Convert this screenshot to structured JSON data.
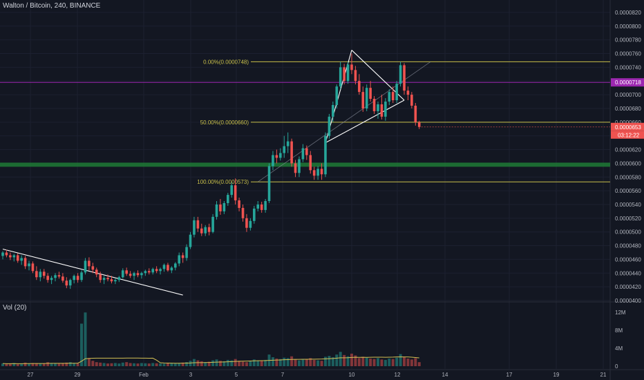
{
  "header": {
    "title": "Walton / Bitcoin, 240, BINANCE"
  },
  "volume_panel": {
    "label": "Vol (20)"
  },
  "colors": {
    "background": "#131722",
    "up": "#26a69a",
    "down": "#ef5350",
    "fib": "#c9c04a",
    "purple": "#9c27b0",
    "green_zone": "#1e7a35",
    "axis_text": "#b2b5be",
    "trendline": "#ffffff",
    "volume_ma": "#d4c154"
  },
  "chart_data": {
    "type": "candlestick",
    "title": "Walton / Bitcoin, 240, BINANCE",
    "price_axis": {
      "range": [
        4e-05,
        8.3e-05
      ],
      "ticks": [
        "0.0000820",
        "0.0000800",
        "0.0000780",
        "0.0000760",
        "0.0000740",
        "0.0000720",
        "0.0000700",
        "0.0000680",
        "0.0000660",
        "0.0000640",
        "0.0000620",
        "0.0000600",
        "0.0000580",
        "0.0000560",
        "0.0000540",
        "0.0000520",
        "0.0000500",
        "0.0000480",
        "0.0000460",
        "0.0000440",
        "0.0000420",
        "0.0000400"
      ]
    },
    "time_axis": {
      "ticks": [
        "27",
        "29",
        "Feb",
        "3",
        "5",
        "7",
        "10",
        "12",
        "14",
        "17",
        "19",
        "21"
      ]
    },
    "price_labels": [
      {
        "value": 7.18e-05,
        "text": "0.0000718",
        "color": "#9c27b0"
      },
      {
        "value": 6.53e-05,
        "text": "0.0000653",
        "color": "#ef5350",
        "countdown": "03:12:22"
      }
    ],
    "fibonacci": [
      {
        "level": "0.00%",
        "value": 7.48e-05,
        "label": "0.00%(0.0000748)"
      },
      {
        "level": "50.00%",
        "value": 6.6e-05,
        "label": "50.00%(0.0000660)"
      },
      {
        "level": "100.00%",
        "value": 5.73e-05,
        "label": "100.00%(0.0000573)"
      }
    ],
    "support_zone": [
      5.95e-05,
      6.01e-05
    ],
    "volume_axis": {
      "ticks": [
        "12M",
        "8M",
        "4M",
        "0"
      ],
      "range": [
        0,
        12500000
      ]
    },
    "candles": [
      [
        4.65e-05,
        4.72e-05,
        4.6e-05,
        4.7e-05
      ],
      [
        4.7e-05,
        4.74e-05,
        4.63e-05,
        4.66e-05
      ],
      [
        4.66e-05,
        4.7e-05,
        4.59e-05,
        4.63e-05
      ],
      [
        4.63e-05,
        4.68e-05,
        4.57e-05,
        4.66e-05
      ],
      [
        4.66e-05,
        4.69e-05,
        4.55e-05,
        4.58e-05
      ],
      [
        4.58e-05,
        4.66e-05,
        4.52e-05,
        4.62e-05
      ],
      [
        4.62e-05,
        4.65e-05,
        4.46e-05,
        4.5e-05
      ],
      [
        4.5e-05,
        4.58e-05,
        4.44e-05,
        4.54e-05
      ],
      [
        4.54e-05,
        4.57e-05,
        4.4e-05,
        4.43e-05
      ],
      [
        4.43e-05,
        4.5e-05,
        4.3e-05,
        4.34e-05
      ],
      [
        4.34e-05,
        4.46e-05,
        4.28e-05,
        4.42e-05
      ],
      [
        4.42e-05,
        4.46e-05,
        4.32e-05,
        4.36e-05
      ],
      [
        4.36e-05,
        4.4e-05,
        4.26e-05,
        4.3e-05
      ],
      [
        4.3e-05,
        4.36e-05,
        4.24e-05,
        4.33e-05
      ],
      [
        4.33e-05,
        4.4e-05,
        4.28e-05,
        4.37e-05
      ],
      [
        4.37e-05,
        4.42e-05,
        4.32e-05,
        4.35e-05
      ],
      [
        4.35e-05,
        4.4e-05,
        4.26e-05,
        4.29e-05
      ],
      [
        4.29e-05,
        4.34e-05,
        4.18e-05,
        4.22e-05
      ],
      [
        4.22e-05,
        4.32e-05,
        4.17e-05,
        4.3e-05
      ],
      [
        4.3e-05,
        4.38e-05,
        4.25e-05,
        4.36e-05
      ],
      [
        4.36e-05,
        4.4e-05,
        4.26e-05,
        4.3e-05
      ],
      [
        4.3e-05,
        4.44e-05,
        4.27e-05,
        4.41e-05
      ],
      [
        4.41e-05,
        4.62e-05,
        4.38e-05,
        4.58e-05
      ],
      [
        4.58e-05,
        4.63e-05,
        4.44e-05,
        4.5e-05
      ],
      [
        4.5e-05,
        4.55e-05,
        4.4e-05,
        4.45e-05
      ],
      [
        4.45e-05,
        4.48e-05,
        4.34e-05,
        4.38e-05
      ],
      [
        4.38e-05,
        4.42e-05,
        4.26e-05,
        4.3e-05
      ],
      [
        4.3e-05,
        4.36e-05,
        4.24e-05,
        4.33e-05
      ],
      [
        4.33e-05,
        4.38e-05,
        4.28e-05,
        4.31e-05
      ],
      [
        4.31e-05,
        4.36e-05,
        4.25e-05,
        4.28e-05
      ],
      [
        4.28e-05,
        4.32e-05,
        4.24e-05,
        4.3e-05
      ],
      [
        4.3e-05,
        4.36e-05,
        4.27e-05,
        4.34e-05
      ],
      [
        4.34e-05,
        4.47e-05,
        4.32e-05,
        4.44e-05
      ],
      [
        4.44e-05,
        4.48e-05,
        4.36e-05,
        4.39e-05
      ],
      [
        4.39e-05,
        4.43e-05,
        4.33e-05,
        4.36e-05
      ],
      [
        4.36e-05,
        4.42e-05,
        4.3e-05,
        4.4e-05
      ],
      [
        4.4e-05,
        4.44e-05,
        4.34e-05,
        4.37e-05
      ],
      [
        4.37e-05,
        4.42e-05,
        4.32e-05,
        4.4e-05
      ],
      [
        4.4e-05,
        4.45e-05,
        4.36e-05,
        4.43e-05
      ],
      [
        4.43e-05,
        4.47e-05,
        4.38e-05,
        4.41e-05
      ],
      [
        4.41e-05,
        4.48e-05,
        4.38e-05,
        4.46e-05
      ],
      [
        4.46e-05,
        4.5e-05,
        4.4e-05,
        4.43e-05
      ],
      [
        4.43e-05,
        4.48e-05,
        4.38e-05,
        4.46e-05
      ],
      [
        4.46e-05,
        4.54e-05,
        4.42e-05,
        4.52e-05
      ],
      [
        4.52e-05,
        4.55e-05,
        4.42e-05,
        4.44e-05
      ],
      [
        4.44e-05,
        4.5e-05,
        4.4e-05,
        4.48e-05
      ],
      [
        4.48e-05,
        4.56e-05,
        4.44e-05,
        4.54e-05
      ],
      [
        4.54e-05,
        4.7e-05,
        4.5e-05,
        4.66e-05
      ],
      [
        4.66e-05,
        4.7e-05,
        4.55e-05,
        4.62e-05
      ],
      [
        4.62e-05,
        4.82e-05,
        4.58e-05,
        4.78e-05
      ],
      [
        4.78e-05,
        5e-05,
        4.75e-05,
        4.96e-05
      ],
      [
        4.96e-05,
        5.22e-05,
        4.92e-05,
        5.17e-05
      ],
      [
        5.17e-05,
        5.22e-05,
        5e-05,
        5.05e-05
      ],
      [
        5.05e-05,
        5.12e-05,
        4.94e-05,
        4.98e-05
      ],
      [
        4.98e-05,
        5.1e-05,
        4.94e-05,
        5.07e-05
      ],
      [
        5.07e-05,
        5.12e-05,
        4.95e-05,
        5e-05
      ],
      [
        5e-05,
        5.26e-05,
        4.98e-05,
        5.22e-05
      ],
      [
        5.22e-05,
        5.45e-05,
        5.18e-05,
        5.4e-05
      ],
      [
        5.4e-05,
        5.48e-05,
        5.25e-05,
        5.3e-05
      ],
      [
        5.3e-05,
        5.45e-05,
        5.26e-05,
        5.42e-05
      ],
      [
        5.42e-05,
        5.57e-05,
        5.38e-05,
        5.54e-05
      ],
      [
        5.54e-05,
        5.72e-05,
        5.5e-05,
        5.68e-05
      ],
      [
        5.68e-05,
        5.78e-05,
        5.4e-05,
        5.46e-05
      ],
      [
        5.46e-05,
        5.5e-05,
        5.3e-05,
        5.35e-05
      ],
      [
        5.35e-05,
        5.4e-05,
        5.15e-05,
        5.2e-05
      ],
      [
        5.2e-05,
        5.26e-05,
        5e-05,
        5.06e-05
      ],
      [
        5.06e-05,
        5.2e-05,
        5.02e-05,
        5.16e-05
      ],
      [
        5.16e-05,
        5.38e-05,
        5.12e-05,
        5.34e-05
      ],
      [
        5.34e-05,
        5.45e-05,
        5.3e-05,
        5.4e-05
      ],
      [
        5.4e-05,
        5.44e-05,
        5.28e-05,
        5.32e-05
      ],
      [
        5.32e-05,
        5.48e-05,
        5.28e-05,
        5.45e-05
      ],
      [
        5.45e-05,
        6e-05,
        5.42e-05,
        5.96e-05
      ],
      [
        5.96e-05,
        6.18e-05,
        5.9e-05,
        6.12e-05
      ],
      [
        6.12e-05,
        6.2e-05,
        6e-05,
        6.08e-05
      ],
      [
        6.08e-05,
        6.22e-05,
        6.04e-05,
        6.15e-05
      ],
      [
        6.15e-05,
        6.4e-05,
        6.08e-05,
        6.25e-05
      ],
      [
        6.25e-05,
        6.45e-05,
        6.15e-05,
        6.32e-05
      ],
      [
        6.32e-05,
        6.36e-05,
        5.95e-05,
        6e-05
      ],
      [
        6e-05,
        6.05e-05,
        5.8e-05,
        5.86e-05
      ],
      [
        5.86e-05,
        6.1e-05,
        5.8e-05,
        6.06e-05
      ],
      [
        6.06e-05,
        6.28e-05,
        6.02e-05,
        6.22e-05
      ],
      [
        6.22e-05,
        6.26e-05,
        6.05e-05,
        6.12e-05
      ],
      [
        6.12e-05,
        6.18e-05,
        5.85e-05,
        5.9e-05
      ],
      [
        5.9e-05,
        5.95e-05,
        5.76e-05,
        5.82e-05
      ],
      [
        5.82e-05,
        5.96e-05,
        5.76e-05,
        5.92e-05
      ],
      [
        5.92e-05,
        6e-05,
        5.76e-05,
        5.84e-05
      ],
      [
        5.84e-05,
        6.45e-05,
        5.8e-05,
        6.4e-05
      ],
      [
        6.4e-05,
        6.72e-05,
        6.36e-05,
        6.68e-05
      ],
      [
        6.68e-05,
        6.9e-05,
        6.6e-05,
        6.85e-05
      ],
      [
        6.85e-05,
        7.15e-05,
        6.8e-05,
        7.12e-05
      ],
      [
        7.12e-05,
        7.48e-05,
        7.08e-05,
        7.4e-05
      ],
      [
        7.4e-05,
        7.45e-05,
        7.15e-05,
        7.2e-05
      ],
      [
        7.2e-05,
        7.48e-05,
        7.16e-05,
        7.44e-05
      ],
      [
        7.44e-05,
        7.6e-05,
        7.3e-05,
        7.36e-05
      ],
      [
        7.36e-05,
        7.42e-05,
        7.15e-05,
        7.2e-05
      ],
      [
        7.2e-05,
        7.3e-05,
        7e-05,
        7.04e-05
      ],
      [
        7.04e-05,
        7.12e-05,
        6.75e-05,
        6.8e-05
      ],
      [
        6.8e-05,
        7.15e-05,
        6.76e-05,
        7.1e-05
      ],
      [
        7.1e-05,
        7.2e-05,
        6.9e-05,
        6.94e-05
      ],
      [
        6.94e-05,
        6.98e-05,
        6.72e-05,
        6.76e-05
      ],
      [
        6.76e-05,
        6.9e-05,
        6.65e-05,
        6.86e-05
      ],
      [
        6.86e-05,
        7e-05,
        6.64e-05,
        6.68e-05
      ],
      [
        6.68e-05,
        6.95e-05,
        6.62e-05,
        6.9e-05
      ],
      [
        6.9e-05,
        7.08e-05,
        6.85e-05,
        7.04e-05
      ],
      [
        7.04e-05,
        7.12e-05,
        6.88e-05,
        6.92e-05
      ],
      [
        6.92e-05,
        7.2e-05,
        6.88e-05,
        7.16e-05
      ],
      [
        7.16e-05,
        7.48e-05,
        7.12e-05,
        7.43e-05
      ],
      [
        7.43e-05,
        7.46e-05,
        7e-05,
        7.06e-05
      ],
      [
        7.06e-05,
        7.12e-05,
        6.92e-05,
        7e-05
      ],
      [
        7e-05,
        7.04e-05,
        6.8e-05,
        6.84e-05
      ],
      [
        6.84e-05,
        6.88e-05,
        6.55e-05,
        6.6e-05
      ],
      [
        6.6e-05,
        6.62e-05,
        6.5e-05,
        6.53e-05
      ]
    ],
    "volumes": [
      600000,
      500000,
      550000,
      700000,
      450000,
      500000,
      800000,
      600000,
      700000,
      650000,
      600000,
      550000,
      900000,
      700000,
      650000,
      600000,
      700000,
      800000,
      900000,
      700000,
      600000,
      9500000,
      12000000,
      1800000,
      1200000,
      900000,
      800000,
      700000,
      600000,
      650000,
      700000,
      600000,
      800000,
      900000,
      700000,
      650000,
      600000,
      700000,
      650000,
      600000,
      700000,
      650000,
      600000,
      550000,
      700000,
      650000,
      600000,
      700000,
      800000,
      900000,
      1200000,
      1600000,
      1300000,
      1100000,
      900000,
      1000000,
      1300000,
      1500000,
      1200000,
      1100000,
      1400000,
      1300000,
      1600000,
      1200000,
      1000000,
      900000,
      1100000,
      1500000,
      1300000,
      1200000,
      1400000,
      2600000,
      2000000,
      1700000,
      1600000,
      1900000,
      1800000,
      2200000,
      1500000,
      1300000,
      1600000,
      1500000,
      1800000,
      1400000,
      1300000,
      1200000,
      2100000,
      2300000,
      2000000,
      2600000,
      3200000,
      2500000,
      2200000,
      2800000,
      2400000,
      1800000,
      2100000,
      1900000,
      1700000,
      1600000,
      1800000,
      1500000,
      1400000,
      1700000,
      1600000,
      1900000,
      2700000,
      2000000,
      1700000,
      1500000,
      1800000,
      900000
    ],
    "trendlines": [
      {
        "name": "downtrend-line",
        "points": [
          [
            0,
            4.75e-05
          ],
          [
            48,
            4.08e-05
          ]
        ]
      },
      {
        "name": "triangle-upper",
        "points": [
          [
            93,
            7.65e-05
          ],
          [
            107,
            6.92e-05
          ]
        ]
      },
      {
        "name": "triangle-lower",
        "points": [
          [
            86,
            6.3e-05
          ],
          [
            107,
            6.92e-05
          ]
        ]
      },
      {
        "name": "triangle-left",
        "points": [
          [
            86,
            6.3e-05
          ],
          [
            93,
            7.65e-05
          ]
        ]
      },
      {
        "name": "trend-ray",
        "points": [
          [
            68,
            5.73e-05
          ],
          [
            114,
            7.48e-05
          ]
        ]
      }
    ]
  }
}
